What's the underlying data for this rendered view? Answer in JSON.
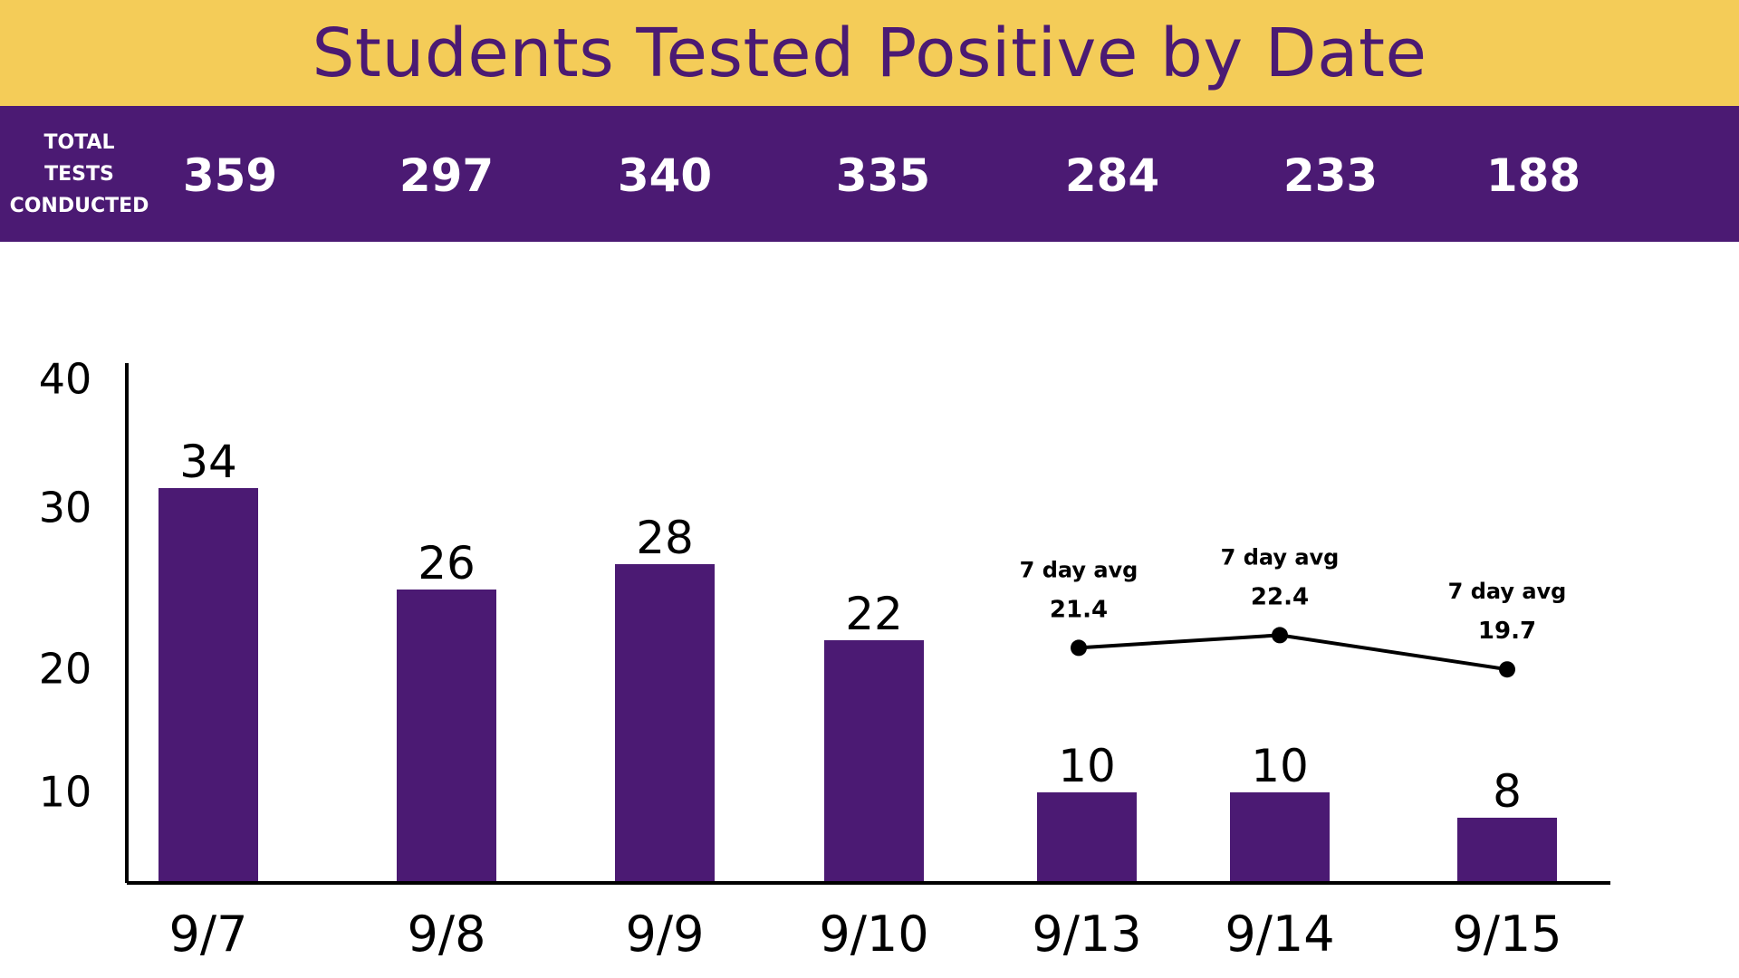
{
  "title": "Students Tested Positive by Date",
  "totals": {
    "label_lines": [
      "TOTAL",
      "TESTS",
      "CONDUCTED"
    ],
    "values": [
      "359",
      "297",
      "340",
      "335",
      "284",
      "233",
      "188"
    ]
  },
  "colors": {
    "title_band": "#F4CC58",
    "purple": "#4B1A73",
    "text_white": "#FFFFFF",
    "axis": "#000000"
  },
  "chart_data": {
    "type": "bar",
    "categories": [
      "9/7",
      "9/8",
      "9/9",
      "9/10",
      "9/13",
      "9/14",
      "9/15"
    ],
    "values": [
      34,
      26,
      28,
      22,
      10,
      10,
      8
    ],
    "data_labels": [
      "34",
      "26",
      "28",
      "22",
      "10",
      "10",
      "8"
    ],
    "yticks": [
      10,
      20,
      30,
      40
    ],
    "ytick_labels": [
      "10",
      "20",
      "30",
      "40"
    ],
    "ylim": [
      3,
      41
    ],
    "title": "",
    "xlabel": "",
    "ylabel": "",
    "grid": false,
    "bar_color": "#4B1A73",
    "overlay": {
      "type": "line",
      "categories": [
        "9/13",
        "9/14",
        "9/15"
      ],
      "values": [
        21.4,
        22.4,
        19.7
      ],
      "label_title": "7 day avg",
      "value_labels": [
        "21.4",
        "22.4",
        "19.7"
      ]
    }
  }
}
